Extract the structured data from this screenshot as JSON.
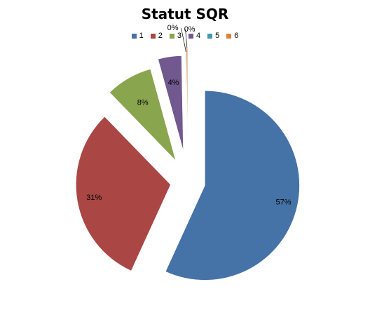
{
  "chart_data": {
    "type": "pie",
    "title": "Statut SQR",
    "categories": [
      "1",
      "2",
      "3",
      "4",
      "5",
      "6"
    ],
    "values": [
      57,
      31,
      8,
      4,
      0.1,
      0.2
    ],
    "data_labels": [
      "57%",
      "31%",
      "8%",
      "4%",
      "0%",
      "0%"
    ],
    "colors": [
      "#4572A7",
      "#AA4643",
      "#89A54E",
      "#71588F",
      "#4198AF",
      "#DB843D"
    ],
    "exploded": true,
    "legend_position": "top"
  }
}
